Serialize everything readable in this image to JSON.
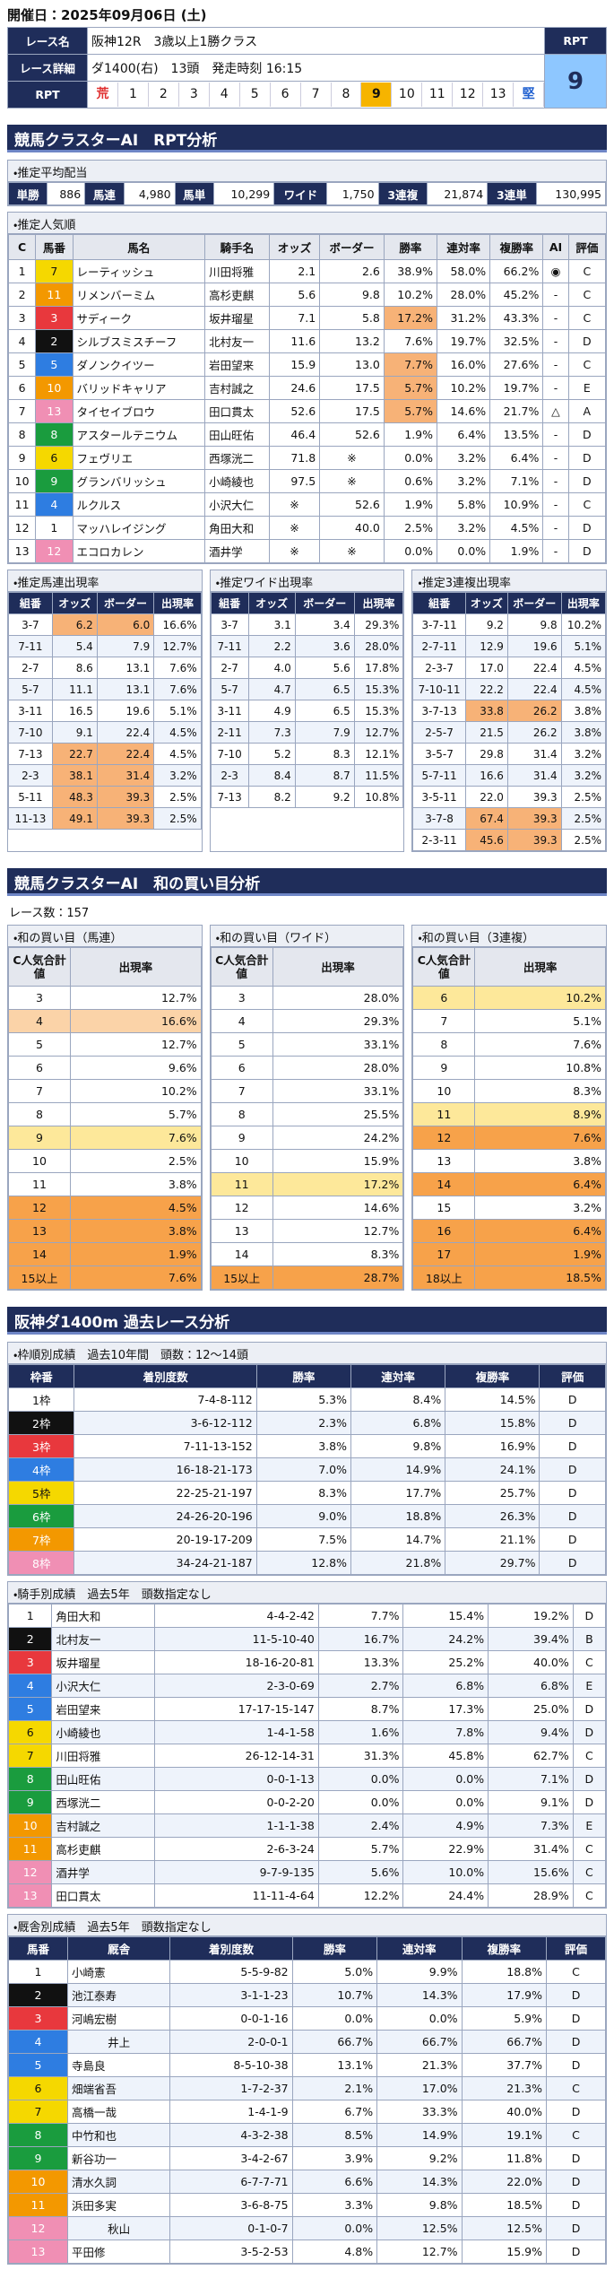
{
  "header": {
    "date": "開催日：2025年09月06日 (土)",
    "race_name_label": "レース名",
    "race_name": "阪神12R　3歳以上1勝クラス",
    "rpt_label": "RPT",
    "detail_label": "レース詳細",
    "detail": "ダ1400(右)　13頭　発走時刻 16:15",
    "rpt_value": 9,
    "scale_label": "RPT",
    "scale": [
      "荒",
      1,
      2,
      3,
      4,
      5,
      6,
      7,
      8,
      9,
      10,
      11,
      12,
      13,
      "堅"
    ]
  },
  "section1": {
    "title": "競馬クラスターAI　RPT分析",
    "payout": {
      "label": "・推定平均配当",
      "items": [
        [
          "単勝",
          "886"
        ],
        [
          "馬連",
          "4,980"
        ],
        [
          "馬単",
          "10,299"
        ],
        [
          "ワイド",
          "1,750"
        ],
        [
          "3連複",
          "21,874"
        ],
        [
          "3連単",
          "130,995"
        ]
      ]
    },
    "popularity": {
      "label": "・推定人気順",
      "columns": [
        "C",
        "馬番",
        "馬名",
        "騎手名",
        "オッズ",
        "ボーダー",
        "勝率",
        "連対率",
        "複勝率",
        "AI",
        "評価"
      ],
      "rows": [
        [
          "1",
          "7",
          "レーティッシュ",
          "川田将雅",
          "2.1",
          "2.6",
          "38.9%",
          "58.0%",
          "66.2%",
          "◉",
          "C"
        ],
        [
          "2",
          "11",
          "リメンバーミム",
          "高杉吏麒",
          "5.6",
          "9.8",
          "10.2%",
          "28.0%",
          "45.2%",
          "-",
          "C"
        ],
        [
          "3",
          "3",
          "サディーク",
          "坂井瑠星",
          "7.1",
          "5.8",
          "17.2%",
          "31.2%",
          "43.3%",
          "-",
          "C"
        ],
        [
          "4",
          "2",
          "シルブスミスチーフ",
          "北村友一",
          "11.6",
          "13.2",
          "7.6%",
          "19.7%",
          "32.5%",
          "-",
          "D"
        ],
        [
          "5",
          "5",
          "ダノンクイツー",
          "岩田望来",
          "15.9",
          "13.0",
          "7.7%",
          "16.0%",
          "27.6%",
          "-",
          "C"
        ],
        [
          "6",
          "10",
          "バリッドキャリア",
          "吉村誠之",
          "24.6",
          "17.5",
          "5.7%",
          "10.2%",
          "19.7%",
          "-",
          "E"
        ],
        [
          "7",
          "13",
          "タイセイブロウ",
          "田口貫太",
          "52.6",
          "17.5",
          "5.7%",
          "14.6%",
          "21.7%",
          "△",
          "A"
        ],
        [
          "8",
          "8",
          "アスタールテニウム",
          "田山旺佑",
          "46.4",
          "52.6",
          "1.9%",
          "6.4%",
          "13.5%",
          "-",
          "D"
        ],
        [
          "9",
          "6",
          "フェヴリエ",
          "西塚洸二",
          "71.8",
          "※",
          "0.0%",
          "3.2%",
          "6.4%",
          "-",
          "D"
        ],
        [
          "10",
          "9",
          "グランバリッシュ",
          "小崎綾也",
          "97.5",
          "※",
          "0.6%",
          "3.2%",
          "7.1%",
          "-",
          "D"
        ],
        [
          "11",
          "4",
          "ルクルス",
          "小沢大仁",
          "※",
          "52.6",
          "1.9%",
          "5.8%",
          "10.9%",
          "-",
          "C"
        ],
        [
          "12",
          "1",
          "マッハレイジング",
          "角田大和",
          "※",
          "40.0",
          "2.5%",
          "3.2%",
          "4.5%",
          "-",
          "D"
        ],
        [
          "13",
          "12",
          "エコロカレン",
          "酒井学",
          "※",
          "※",
          "0.0%",
          "0.0%",
          "1.9%",
          "-",
          "D"
        ]
      ]
    },
    "combos": [
      {
        "label": "・推定馬連出現率",
        "columns": [
          "組番",
          "オッズ",
          "ボーダー",
          "出現率"
        ],
        "rows": [
          [
            "3-7",
            "6.2",
            "6.0",
            "16.6%"
          ],
          [
            "7-11",
            "5.4",
            "7.9",
            "12.7%"
          ],
          [
            "2-7",
            "8.6",
            "13.1",
            "7.6%"
          ],
          [
            "5-7",
            "11.1",
            "13.1",
            "7.6%"
          ],
          [
            "3-11",
            "16.5",
            "19.6",
            "5.1%"
          ],
          [
            "7-10",
            "9.1",
            "22.4",
            "4.5%"
          ],
          [
            "7-13",
            "22.7",
            "22.4",
            "4.5%"
          ],
          [
            "2-3",
            "38.1",
            "31.4",
            "3.2%"
          ],
          [
            "5-11",
            "48.3",
            "39.3",
            "2.5%"
          ],
          [
            "11-13",
            "49.1",
            "39.3",
            "2.5%"
          ]
        ]
      },
      {
        "label": "・推定ワイド出現率",
        "columns": [
          "組番",
          "オッズ",
          "ボーダー",
          "出現率"
        ],
        "rows": [
          [
            "3-7",
            "3.1",
            "3.4",
            "29.3%"
          ],
          [
            "7-11",
            "2.2",
            "3.6",
            "28.0%"
          ],
          [
            "2-7",
            "4.0",
            "5.6",
            "17.8%"
          ],
          [
            "5-7",
            "4.7",
            "6.5",
            "15.3%"
          ],
          [
            "3-11",
            "4.9",
            "6.5",
            "15.3%"
          ],
          [
            "2-11",
            "7.3",
            "7.9",
            "12.7%"
          ],
          [
            "7-10",
            "5.2",
            "8.3",
            "12.1%"
          ],
          [
            "2-3",
            "8.4",
            "8.7",
            "11.5%"
          ],
          [
            "7-13",
            "8.2",
            "9.2",
            "10.8%"
          ]
        ]
      },
      {
        "label": "・推定3連複出現率",
        "columns": [
          "組番",
          "オッズ",
          "ボーダー",
          "出現率"
        ],
        "rows": [
          [
            "3-7-11",
            "9.2",
            "9.8",
            "10.2%"
          ],
          [
            "2-7-11",
            "12.9",
            "19.6",
            "5.1%"
          ],
          [
            "2-3-7",
            "17.0",
            "22.4",
            "4.5%"
          ],
          [
            "7-10-11",
            "22.2",
            "22.4",
            "4.5%"
          ],
          [
            "3-7-13",
            "33.8",
            "26.2",
            "3.8%"
          ],
          [
            "2-5-7",
            "21.5",
            "26.2",
            "3.8%"
          ],
          [
            "3-5-7",
            "29.8",
            "31.4",
            "3.2%"
          ],
          [
            "5-7-11",
            "16.6",
            "31.4",
            "3.2%"
          ],
          [
            "3-5-11",
            "22.0",
            "39.3",
            "2.5%"
          ],
          [
            "3-7-8",
            "67.4",
            "39.3",
            "2.5%"
          ],
          [
            "2-3-11",
            "45.6",
            "39.3",
            "2.5%"
          ]
        ]
      }
    ]
  },
  "section2": {
    "title": "競馬クラスターAI　和の買い目分析",
    "race_count": "レース数：157",
    "tables": [
      {
        "label": "・和の買い目（馬連）",
        "columns": [
          "C人気合計値",
          "出現率"
        ],
        "rows": [
          [
            "3",
            "12.7%"
          ],
          [
            "4",
            "16.6%"
          ],
          [
            "5",
            "12.7%"
          ],
          [
            "6",
            "9.6%"
          ],
          [
            "7",
            "10.2%"
          ],
          [
            "8",
            "5.7%"
          ],
          [
            "9",
            "7.6%"
          ],
          [
            "10",
            "2.5%"
          ],
          [
            "11",
            "3.8%"
          ],
          [
            "12",
            "4.5%"
          ],
          [
            "13",
            "3.8%"
          ],
          [
            "14",
            "1.9%"
          ],
          [
            "15以上",
            "7.6%"
          ]
        ],
        "row_colors": [
          "#ffffff",
          "#fbd3a8",
          "#ffffff",
          "#ffffff",
          "#ffffff",
          "#ffffff",
          "#fde89a",
          "#ffffff",
          "#ffffff",
          "#f7a24a",
          "#f7a24a",
          "#f7a24a",
          "#f7a24a"
        ]
      },
      {
        "label": "・和の買い目（ワイド）",
        "columns": [
          "C人気合計値",
          "出現率"
        ],
        "rows": [
          [
            "3",
            "28.0%"
          ],
          [
            "4",
            "29.3%"
          ],
          [
            "5",
            "33.1%"
          ],
          [
            "6",
            "28.0%"
          ],
          [
            "7",
            "33.1%"
          ],
          [
            "8",
            "25.5%"
          ],
          [
            "9",
            "24.2%"
          ],
          [
            "10",
            "15.9%"
          ],
          [
            "11",
            "17.2%"
          ],
          [
            "12",
            "14.6%"
          ],
          [
            "13",
            "12.7%"
          ],
          [
            "14",
            "8.3%"
          ],
          [
            "15以上",
            "28.7%"
          ]
        ],
        "row_colors": [
          "#ffffff",
          "#ffffff",
          "#ffffff",
          "#ffffff",
          "#ffffff",
          "#ffffff",
          "#ffffff",
          "#ffffff",
          "#fde89a",
          "#ffffff",
          "#ffffff",
          "#ffffff",
          "#f7a24a"
        ]
      },
      {
        "label": "・和の買い目（3連複）",
        "columns": [
          "C人気合計値",
          "出現率"
        ],
        "rows": [
          [
            "6",
            "10.2%"
          ],
          [
            "7",
            "5.1%"
          ],
          [
            "8",
            "7.6%"
          ],
          [
            "9",
            "10.8%"
          ],
          [
            "10",
            "8.3%"
          ],
          [
            "11",
            "8.9%"
          ],
          [
            "12",
            "7.6%"
          ],
          [
            "13",
            "3.8%"
          ],
          [
            "14",
            "6.4%"
          ],
          [
            "15",
            "3.2%"
          ],
          [
            "16",
            "6.4%"
          ],
          [
            "17",
            "1.9%"
          ],
          [
            "18以上",
            "18.5%"
          ]
        ],
        "row_colors": [
          "#fde89a",
          "#ffffff",
          "#ffffff",
          "#ffffff",
          "#ffffff",
          "#fde89a",
          "#f7a24a",
          "#ffffff",
          "#f7a24a",
          "#ffffff",
          "#f7a24a",
          "#f7a24a",
          "#f7a24a"
        ]
      }
    ]
  },
  "section3": {
    "title": "阪神ダ1400m 過去レース分析",
    "frames": {
      "label": "・枠順別成績　過去10年間　頭数：12～14頭",
      "columns": [
        "枠番",
        "着別度数",
        "勝率",
        "連対率",
        "複勝率",
        "評価"
      ],
      "rows": [
        [
          "1枠",
          "7-4-8-112",
          "5.3%",
          "8.4%",
          "14.5%",
          "D"
        ],
        [
          "2枠",
          "3-6-12-112",
          "2.3%",
          "6.8%",
          "15.8%",
          "D"
        ],
        [
          "3枠",
          "7-11-13-152",
          "3.8%",
          "9.8%",
          "16.9%",
          "D"
        ],
        [
          "4枠",
          "16-18-21-173",
          "7.0%",
          "14.9%",
          "24.1%",
          "D"
        ],
        [
          "5枠",
          "22-25-21-197",
          "8.3%",
          "17.7%",
          "25.7%",
          "D"
        ],
        [
          "6枠",
          "24-26-20-196",
          "9.0%",
          "18.8%",
          "26.3%",
          "D"
        ],
        [
          "7枠",
          "20-19-17-209",
          "7.5%",
          "14.7%",
          "21.1%",
          "D"
        ],
        [
          "8枠",
          "34-24-21-187",
          "12.8%",
          "21.8%",
          "29.7%",
          "D"
        ]
      ]
    },
    "jockeys": {
      "label": "・騎手別成績　過去5年　頭数指定なし",
      "rows": [
        [
          "1",
          "角田大和",
          "4-4-2-42",
          "7.7%",
          "15.4%",
          "19.2%",
          "D"
        ],
        [
          "2",
          "北村友一",
          "11-5-10-40",
          "16.7%",
          "24.2%",
          "39.4%",
          "B"
        ],
        [
          "3",
          "坂井瑠星",
          "18-16-20-81",
          "13.3%",
          "25.2%",
          "40.0%",
          "C"
        ],
        [
          "4",
          "小沢大仁",
          "2-3-0-69",
          "2.7%",
          "6.8%",
          "6.8%",
          "E"
        ],
        [
          "5",
          "岩田望来",
          "17-17-15-147",
          "8.7%",
          "17.3%",
          "25.0%",
          "D"
        ],
        [
          "6",
          "小崎綾也",
          "1-4-1-58",
          "1.6%",
          "7.8%",
          "9.4%",
          "D"
        ],
        [
          "7",
          "川田将雅",
          "26-12-14-31",
          "31.3%",
          "45.8%",
          "62.7%",
          "C"
        ],
        [
          "8",
          "田山旺佑",
          "0-0-1-13",
          "0.0%",
          "0.0%",
          "7.1%",
          "D"
        ],
        [
          "9",
          "西塚洸二",
          "0-0-2-20",
          "0.0%",
          "0.0%",
          "9.1%",
          "D"
        ],
        [
          "10",
          "吉村誠之",
          "1-1-1-38",
          "2.4%",
          "4.9%",
          "7.3%",
          "E"
        ],
        [
          "11",
          "高杉吏麒",
          "2-6-3-24",
          "5.7%",
          "22.9%",
          "31.4%",
          "C"
        ],
        [
          "12",
          "酒井学",
          "9-7-9-135",
          "5.6%",
          "10.0%",
          "15.6%",
          "C"
        ],
        [
          "13",
          "田口貫太",
          "11-11-4-64",
          "12.2%",
          "24.4%",
          "28.9%",
          "C"
        ]
      ]
    },
    "stables": {
      "label": "・厩舎別成績　過去5年　頭数指定なし",
      "columns": [
        "馬番",
        "厩舎",
        "着別度数",
        "勝率",
        "連対率",
        "複勝率",
        "評価"
      ],
      "rows": [
        [
          "1",
          "小崎憲",
          "5-5-9-82",
          "5.0%",
          "9.9%",
          "18.8%",
          "C"
        ],
        [
          "2",
          "池江泰寿",
          "3-1-1-23",
          "10.7%",
          "14.3%",
          "17.9%",
          "D"
        ],
        [
          "3",
          "河嶋宏樹",
          "0-0-1-16",
          "0.0%",
          "0.0%",
          "5.9%",
          "D"
        ],
        [
          "4",
          "井上",
          "2-0-0-1",
          "66.7%",
          "66.7%",
          "66.7%",
          "D"
        ],
        [
          "5",
          "寺島良",
          "8-5-10-38",
          "13.1%",
          "21.3%",
          "37.7%",
          "D"
        ],
        [
          "6",
          "畑端省吾",
          "1-7-2-37",
          "2.1%",
          "17.0%",
          "21.3%",
          "C"
        ],
        [
          "7",
          "高橋一哉",
          "1-4-1-9",
          "6.7%",
          "33.3%",
          "40.0%",
          "D"
        ],
        [
          "8",
          "中竹和也",
          "4-3-2-38",
          "8.5%",
          "14.9%",
          "19.1%",
          "C"
        ],
        [
          "9",
          "新谷功一",
          "3-4-2-67",
          "3.9%",
          "9.2%",
          "11.8%",
          "D"
        ],
        [
          "10",
          "清水久詞",
          "6-7-7-71",
          "6.6%",
          "14.3%",
          "22.0%",
          "D"
        ],
        [
          "11",
          "浜田多実",
          "3-6-8-75",
          "3.3%",
          "9.8%",
          "18.5%",
          "D"
        ],
        [
          "12",
          "秋山",
          "0-1-0-7",
          "0.0%",
          "12.5%",
          "12.5%",
          "D"
        ],
        [
          "13",
          "平田修",
          "3-5-2-53",
          "4.8%",
          "12.7%",
          "15.9%",
          "D"
        ]
      ]
    }
  }
}
